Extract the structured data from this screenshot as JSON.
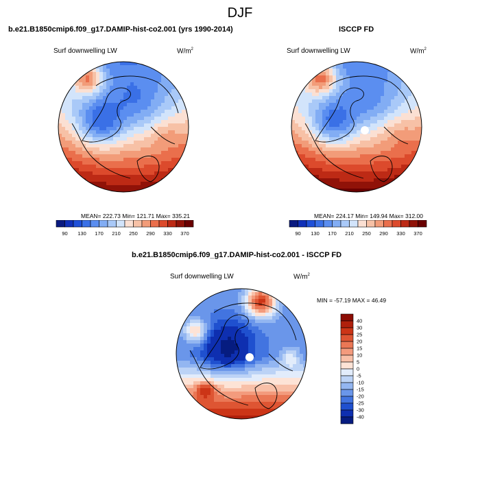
{
  "main_title": "DJF",
  "panels": [
    {
      "title": "b.e21.B1850cmip6.f09_g17.DAMIP-hist-co2.001 (yrs 1990-2014)",
      "left_label": "Surf downwelling LW",
      "units": "W/m",
      "units_exp": "2",
      "stats": "MEAN= 222.73  Min= 121.71  Max= 335.21"
    },
    {
      "title": "ISCCP FD",
      "left_label": "Surf downwelling LW",
      "units": "W/m",
      "units_exp": "2",
      "stats": "MEAN= 224.17  Min= 149.94  Max= 312.00"
    },
    {
      "title": "b.e21.B1850cmip6.f09_g17.DAMIP-hist-co2.001 - ISCCP FD",
      "left_label": "Surf downwelling LW",
      "units": "W/m",
      "units_exp": "2",
      "stats": "MIN = -57.19 MAX =  46.49"
    }
  ],
  "chart_data": [
    {
      "type": "heatmap",
      "projection": "north-polar-stereographic",
      "title": "b.e21.B1850cmip6.f09_g17.DAMIP-hist-co2.001 (yrs 1990-2014)",
      "variable": "Surf downwelling LW",
      "units": "W/m2",
      "mean": 222.73,
      "min": 121.71,
      "max": 335.21,
      "colorbar_levels": [
        90,
        110,
        130,
        150,
        170,
        190,
        210,
        230,
        250,
        270,
        290,
        310,
        330,
        350,
        370
      ],
      "colorbar_tick_labels": [
        "90",
        "130",
        "170",
        "210",
        "250",
        "290",
        "330",
        "370"
      ],
      "colorbar_colors": [
        "#0a1a80",
        "#1030b8",
        "#1f50d8",
        "#3a70e6",
        "#5b8ef0",
        "#82adf4",
        "#a9c9f8",
        "#d2e4fb",
        "#fbe0d3",
        "#f7c1a6",
        "#f29c79",
        "#ea6f4c",
        "#dc4a2c",
        "#bd2a15",
        "#901208",
        "#6a0000"
      ]
    },
    {
      "type": "heatmap",
      "projection": "north-polar-stereographic",
      "title": "ISCCP FD",
      "variable": "Surf downwelling LW",
      "units": "W/m2",
      "mean": 224.17,
      "min": 149.94,
      "max": 312.0,
      "colorbar_levels": [
        90,
        110,
        130,
        150,
        170,
        190,
        210,
        230,
        250,
        270,
        290,
        310,
        330,
        350,
        370
      ],
      "colorbar_tick_labels": [
        "90",
        "130",
        "170",
        "210",
        "250",
        "290",
        "330",
        "370"
      ],
      "colorbar_colors": [
        "#0a1a80",
        "#1030b8",
        "#1f50d8",
        "#3a70e6",
        "#5b8ef0",
        "#82adf4",
        "#a9c9f8",
        "#d2e4fb",
        "#fbe0d3",
        "#f7c1a6",
        "#f29c79",
        "#ea6f4c",
        "#dc4a2c",
        "#bd2a15",
        "#901208",
        "#6a0000"
      ]
    },
    {
      "type": "heatmap",
      "projection": "north-polar-stereographic",
      "title": "b.e21.B1850cmip6.f09_g17.DAMIP-hist-co2.001 - ISCCP FD",
      "variable": "Surf downwelling LW",
      "units": "W/m2",
      "min": -57.19,
      "max": 46.49,
      "colorbar_levels": [
        40,
        30,
        25,
        20,
        15,
        10,
        5,
        0,
        -5,
        -10,
        -15,
        -20,
        -25,
        -30,
        -40
      ],
      "colorbar_tick_labels": [
        "40",
        "30",
        "25",
        "20",
        "15",
        "10",
        "5",
        "0",
        "-5",
        "-10",
        "-15",
        "-20",
        "-25",
        "-30",
        "-40"
      ],
      "colorbar_colors": [
        "#8c0d04",
        "#b0200c",
        "#cc3517",
        "#de5533",
        "#ea7755",
        "#f39b7d",
        "#f8c0a8",
        "#fde3d6",
        "#e2ecfb",
        "#bcd3f6",
        "#93b6f1",
        "#6a96ea",
        "#4274e0",
        "#1f50cf",
        "#0e2fb0",
        "#061c80"
      ]
    }
  ]
}
